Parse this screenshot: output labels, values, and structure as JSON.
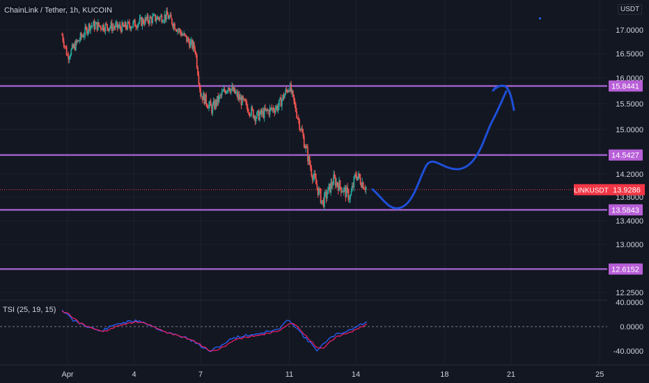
{
  "header": {
    "symbol_title": "ChainLink / Tether, 1h, KUCOIN",
    "currency": "USDT"
  },
  "indicator": {
    "label": "TSI (25, 19, 15)",
    "ticks": [
      "40.0000",
      "0.0000",
      "-40.0000"
    ]
  },
  "colors": {
    "background": "#131722",
    "grid": "#1e222d",
    "up_candle": "#26a69a",
    "down_candle": "#ef5350",
    "level_line": "#9c5fc4",
    "level_label_bg": "#b85fd8",
    "current_price": "#f23645",
    "drawing": "#1e4fd8",
    "tsi_line": "#2962ff",
    "tsi_signal": "#e91e63"
  },
  "chart_data": {
    "type": "candlestick",
    "y_axis": {
      "range": [
        12.18,
        17.5
      ],
      "ticks": [
        "17.0000",
        "16.5000",
        "16.0000",
        "15.5000",
        "15.0000",
        "14.2000",
        "13.8000",
        "13.4000",
        "13.0000",
        "12.2500"
      ]
    },
    "x_axis": {
      "ticks": [
        "Apr",
        "4",
        "7",
        "11",
        "14",
        "18",
        "21",
        "25"
      ]
    },
    "horizontal_levels": [
      {
        "label": "15.8441",
        "value": 15.8441
      },
      {
        "label": "14.5427",
        "value": 14.5427
      },
      {
        "label": "13.5843",
        "value": 13.5843
      },
      {
        "label": "12.6152",
        "value": 12.6152
      }
    ],
    "current_price": {
      "symbol": "LINKUSDT",
      "label": "13.9286",
      "value": 13.9286
    },
    "price_path": [
      {
        "x": "Mar 31 18:00",
        "y": 16.9
      },
      {
        "x": "Apr 1 00:00",
        "y": 16.45
      },
      {
        "x": "Apr 2 00:00",
        "y": 17.1
      },
      {
        "x": "Apr 3 12:00",
        "y": 17.05
      },
      {
        "x": "Apr 4 12:00",
        "y": 17.2
      },
      {
        "x": "Apr 5 12:00",
        "y": 17.3
      },
      {
        "x": "Apr 6 00:00",
        "y": 17.0
      },
      {
        "x": "Apr 6 18:00",
        "y": 16.6
      },
      {
        "x": "Apr 7 00:00",
        "y": 15.7
      },
      {
        "x": "Apr 7 12:00",
        "y": 15.4
      },
      {
        "x": "Apr 8 06:00",
        "y": 15.85
      },
      {
        "x": "Apr 8 18:00",
        "y": 15.6
      },
      {
        "x": "Apr 9 12:00",
        "y": 15.25
      },
      {
        "x": "Apr 10 12:00",
        "y": 15.45
      },
      {
        "x": "Apr 11 00:00",
        "y": 15.85
      },
      {
        "x": "Apr 11 12:00",
        "y": 15.05
      },
      {
        "x": "Apr 12 00:00",
        "y": 14.25
      },
      {
        "x": "Apr 12 12:00",
        "y": 13.7
      },
      {
        "x": "Apr 13 00:00",
        "y": 14.1
      },
      {
        "x": "Apr 13 18:00",
        "y": 13.8
      },
      {
        "x": "Apr 14 00:00",
        "y": 14.2
      },
      {
        "x": "Apr 14 12:00",
        "y": 13.95
      }
    ],
    "tsi_path": [
      {
        "x": "Mar 31 18:00",
        "y": 28
      },
      {
        "x": "Apr 1 06:00",
        "y": 10
      },
      {
        "x": "Apr 2 12:00",
        "y": -8
      },
      {
        "x": "Apr 3 06:00",
        "y": 5
      },
      {
        "x": "Apr 4 06:00",
        "y": 10
      },
      {
        "x": "Apr 5 12:00",
        "y": -10
      },
      {
        "x": "Apr 6 12:00",
        "y": -20
      },
      {
        "x": "Apr 7 06:00",
        "y": -38
      },
      {
        "x": "Apr 7 12:00",
        "y": -40
      },
      {
        "x": "Apr 8 12:00",
        "y": -18
      },
      {
        "x": "Apr 9 12:00",
        "y": -12
      },
      {
        "x": "Apr 10 12:00",
        "y": -5
      },
      {
        "x": "Apr 11 00:00",
        "y": 12
      },
      {
        "x": "Apr 11 18:00",
        "y": -20
      },
      {
        "x": "Apr 12 06:00",
        "y": -38
      },
      {
        "x": "Apr 13 00:00",
        "y": -15
      },
      {
        "x": "Apr 13 18:00",
        "y": -5
      },
      {
        "x": "Apr 14 12:00",
        "y": 8
      }
    ]
  }
}
